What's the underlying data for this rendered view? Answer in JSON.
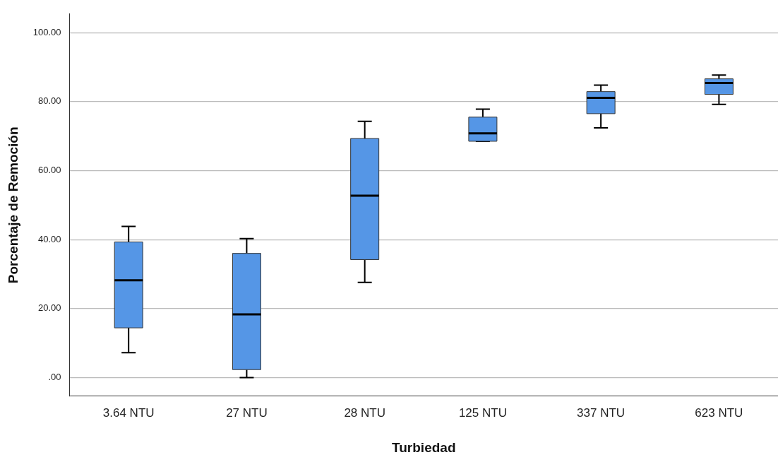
{
  "chart_data": {
    "type": "box",
    "xlabel": "Turbiedad",
    "ylabel": "Porcentaje de Remoción",
    "categories": [
      "3.64 NTU",
      "27 NTU",
      "28 NTU",
      "125 NTU",
      "337 NTU",
      "623 NTU"
    ],
    "series": [
      {
        "color": "#5596e6",
        "boxes": [
          {
            "low": 7.2,
            "q1": 14.4,
            "median": 28.2,
            "q3": 39.3,
            "high": 43.8
          },
          {
            "low": 0,
            "q1": 2.3,
            "median": 18.3,
            "q3": 36.0,
            "high": 40.3
          },
          {
            "low": 27.6,
            "q1": 34.2,
            "median": 52.7,
            "q3": 69.3,
            "high": 74.3
          },
          {
            "low": 68.5,
            "q1": 68.5,
            "median": 70.8,
            "q3": 75.5,
            "high": 77.8
          },
          {
            "low": 72.4,
            "q1": 76.5,
            "median": 81.1,
            "q3": 82.9,
            "high": 84.8
          },
          {
            "low": 79.2,
            "q1": 82.1,
            "median": 85.4,
            "q3": 86.6,
            "high": 87.7
          }
        ]
      }
    ],
    "ylim": [
      -5.4,
      105.4
    ],
    "yticks": [
      {
        "value": 0,
        "label": ".00"
      },
      {
        "value": 20,
        "label": "20.00"
      },
      {
        "value": 40,
        "label": "40.00"
      },
      {
        "value": 60,
        "label": "60.00"
      },
      {
        "value": 80,
        "label": "80.00"
      },
      {
        "value": 100,
        "label": "100.00"
      }
    ],
    "grid": "y",
    "legend": false
  }
}
